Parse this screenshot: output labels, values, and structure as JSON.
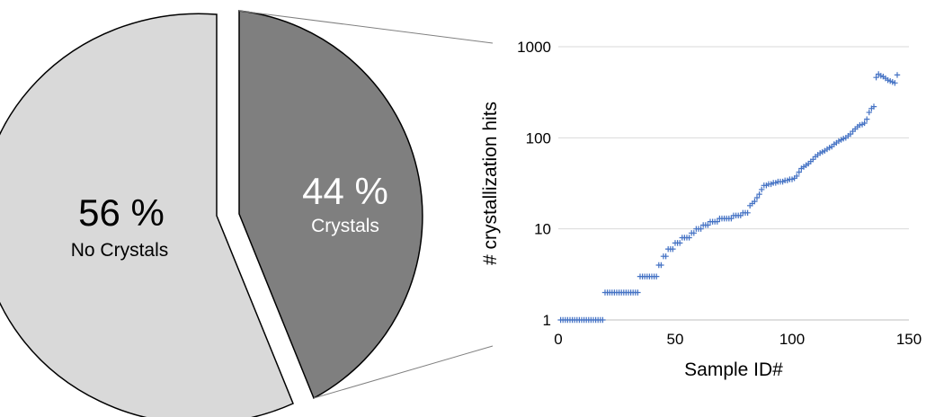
{
  "colors": {
    "no_crystals_fill": "#d9d9d9",
    "crystals_fill": "#7f7f7f",
    "outline": "#000000",
    "marker": "#4472c4",
    "axis": "#bfbfbf",
    "grid": "#d9d9d9",
    "text": "#000000"
  },
  "chart_data": [
    {
      "type": "pie",
      "exploded": true,
      "slices": [
        {
          "pct_label": "56 %",
          "name": "No Crystals",
          "value": 56
        },
        {
          "pct_label": "44 %",
          "name": "Crystals",
          "value": 44
        }
      ],
      "connector": "exploded Crystals slice linked to scatter plot"
    },
    {
      "type": "scatter",
      "marker": "plus",
      "xlabel": "Sample ID#",
      "ylabel": "# crystallization hits",
      "xlim": [
        0,
        150
      ],
      "ylim": [
        1,
        1000
      ],
      "yscale": "log",
      "xticks": [
        "0",
        "50",
        "100",
        "150"
      ],
      "yticks": [
        "1",
        "10",
        "100",
        "1000"
      ],
      "grid": "horizontal",
      "x": [
        1,
        2,
        3,
        4,
        5,
        6,
        7,
        8,
        9,
        10,
        11,
        12,
        13,
        14,
        15,
        16,
        17,
        18,
        19,
        20,
        21,
        22,
        23,
        24,
        25,
        26,
        27,
        28,
        29,
        30,
        31,
        32,
        33,
        34,
        35,
        36,
        37,
        38,
        39,
        40,
        41,
        42,
        43,
        44,
        45,
        46,
        47,
        48,
        49,
        50,
        51,
        52,
        53,
        54,
        55,
        56,
        57,
        58,
        59,
        60,
        61,
        62,
        63,
        64,
        65,
        66,
        67,
        68,
        69,
        70,
        71,
        72,
        73,
        74,
        75,
        76,
        77,
        78,
        79,
        80,
        81,
        82,
        83,
        84,
        85,
        86,
        87,
        88,
        89,
        90,
        91,
        92,
        93,
        94,
        95,
        96,
        97,
        98,
        99,
        100,
        101,
        102,
        103,
        104,
        105,
        106,
        107,
        108,
        109,
        110,
        111,
        112,
        113,
        114,
        115,
        116,
        117,
        118,
        119,
        120,
        121,
        122,
        123,
        124,
        125,
        126,
        127,
        128,
        129,
        130,
        131,
        132,
        133,
        134,
        135,
        136,
        137,
        138,
        139,
        140,
        141,
        142,
        143,
        144,
        145
      ],
      "y": [
        1,
        1,
        1,
        1,
        1,
        1,
        1,
        1,
        1,
        1,
        1,
        1,
        1,
        1,
        1,
        1,
        1,
        1,
        1,
        2,
        2,
        2,
        2,
        2,
        2,
        2,
        2,
        2,
        2,
        2,
        2,
        2,
        2,
        2,
        3,
        3,
        3,
        3,
        3,
        3,
        3,
        3,
        4,
        4,
        5,
        5,
        6,
        6,
        6,
        7,
        7,
        7,
        8,
        8,
        8,
        8,
        9,
        9,
        10,
        10,
        10,
        11,
        11,
        11,
        12,
        12,
        12,
        12,
        13,
        13,
        13,
        13,
        13,
        13,
        14,
        14,
        14,
        14,
        15,
        15,
        15,
        18,
        19,
        20,
        22,
        24,
        27,
        30,
        30,
        31,
        31,
        32,
        32,
        33,
        33,
        33,
        34,
        34,
        35,
        35,
        36,
        38,
        42,
        46,
        48,
        50,
        52,
        55,
        58,
        62,
        65,
        68,
        70,
        72,
        75,
        78,
        80,
        85,
        88,
        92,
        95,
        98,
        100,
        105,
        110,
        118,
        125,
        132,
        138,
        140,
        145,
        160,
        190,
        210,
        220,
        460,
        500,
        480,
        470,
        450,
        430,
        420,
        410,
        400,
        490
      ]
    }
  ]
}
